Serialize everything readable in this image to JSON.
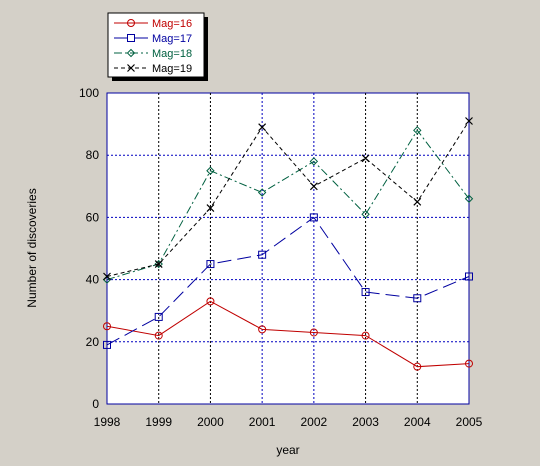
{
  "chart_data": {
    "type": "line",
    "title": "",
    "xlabel": "year",
    "ylabel": "Number of discoveries",
    "x": [
      1998,
      1999,
      2000,
      2001,
      2002,
      2003,
      2004,
      2005
    ],
    "xlim": [
      1998,
      2005
    ],
    "ylim": [
      0,
      100
    ],
    "yticks": [
      0,
      20,
      40,
      60,
      80,
      100
    ],
    "grid": true,
    "legend_position": "top-left, above plot",
    "series": [
      {
        "name": "Mag=16",
        "color": "#c00000",
        "marker": "circle",
        "dash": "solid",
        "values": [
          25,
          22,
          33,
          24,
          23,
          22,
          12,
          13
        ]
      },
      {
        "name": "Mag=17",
        "color": "#0000a0",
        "marker": "square",
        "dash": "long-dash",
        "values": [
          19,
          28,
          45,
          48,
          60,
          36,
          34,
          41
        ]
      },
      {
        "name": "Mag=18",
        "color": "#006040",
        "marker": "diamond",
        "dash": "dash-dot",
        "values": [
          40,
          45,
          75,
          68,
          78,
          61,
          88,
          66
        ]
      },
      {
        "name": "Mag=19",
        "color": "#000000",
        "marker": "x",
        "dash": "short-dash",
        "values": [
          41,
          45,
          63,
          89,
          70,
          79,
          65,
          91
        ]
      }
    ]
  }
}
